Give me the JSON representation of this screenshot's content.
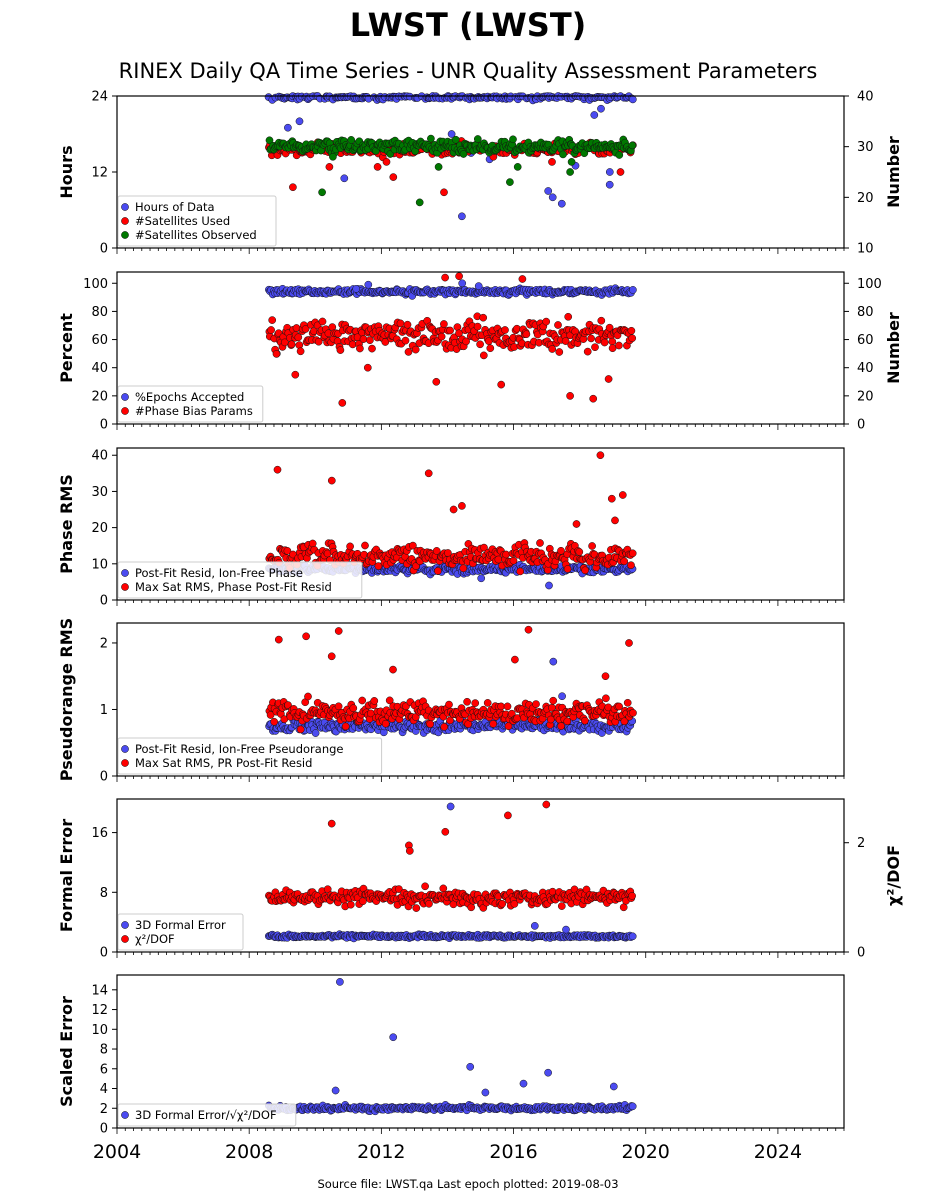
{
  "title": "LWST (LWST)",
  "subtitle": "RINEX Daily QA Time Series - UNR Quality Assessment Parameters",
  "footer": "Source file: LWST.qa Last epoch plotted: 2019-08-03",
  "colors": {
    "blue": "#4b4bf0",
    "red": "#ff0000",
    "green": "#007800",
    "edge": "#111111"
  },
  "chart_data": [
    {
      "type": "scatter",
      "ylabel": "Hours",
      "ylabel_right": "Number",
      "xlim": [
        2004,
        2026
      ],
      "ylim": [
        0,
        24
      ],
      "yticks": [
        "0",
        "12",
        "24"
      ],
      "ylim_right": [
        10,
        40
      ],
      "yticks_right": [
        "10",
        "20",
        "30",
        "40"
      ],
      "legend_placement": "lower-left",
      "series": [
        {
          "name": "Hours of Data",
          "color": "blue",
          "axis": "left",
          "center": 23.9,
          "spread": 0.5,
          "outliers": [
            18,
            22,
            20,
            16,
            14,
            12,
            10,
            8,
            5,
            11,
            13,
            15,
            19,
            21,
            9,
            7
          ]
        },
        {
          "name": "#Satellites Used",
          "color": "red",
          "axis": "right",
          "center": 29.5,
          "spread": 1.2,
          "outliers": [
            26,
            28,
            21,
            25,
            24,
            27,
            22,
            26,
            27
          ]
        },
        {
          "name": "#Satellites Observed",
          "color": "green",
          "axis": "right",
          "center": 30,
          "spread": 1.2,
          "outliers": [
            21,
            19,
            23,
            25,
            26,
            27,
            28,
            26
          ]
        }
      ]
    },
    {
      "type": "scatter",
      "ylabel": "Percent",
      "ylabel_right": "Number",
      "xlim": [
        2004,
        2026
      ],
      "ylim": [
        0,
        108
      ],
      "yticks": [
        "0",
        "20",
        "40",
        "60",
        "80",
        "100"
      ],
      "ylim_right": [
        0,
        108
      ],
      "yticks_right": [
        "0",
        "20",
        "40",
        "60",
        "80",
        "100"
      ],
      "legend_placement": "lower-left",
      "series": [
        {
          "name": "%Epochs Accepted",
          "color": "blue",
          "axis": "left",
          "center": 94,
          "spread": 2,
          "outliers": [
            100,
            98,
            96,
            99,
            50
          ]
        },
        {
          "name": "#Phase Bias Params",
          "color": "red",
          "axis": "right",
          "center": 63,
          "spread": 10,
          "outliers": [
            15,
            18,
            20,
            30,
            35,
            40,
            105,
            104,
            103,
            28,
            32
          ]
        }
      ]
    },
    {
      "type": "scatter",
      "ylabel": "Phase RMS",
      "xlim": [
        2004,
        2026
      ],
      "ylim": [
        0,
        42
      ],
      "yticks": [
        "0",
        "10",
        "20",
        "30",
        "40"
      ],
      "legend_placement": "lower-left",
      "series": [
        {
          "name": "Post-Fit Resid, Ion-Free Phase",
          "color": "blue",
          "axis": "left",
          "center": 8.5,
          "spread": 1,
          "outliers": [
            4,
            6
          ]
        },
        {
          "name": "Max Sat RMS, Phase Post-Fit Resid",
          "color": "red",
          "axis": "left",
          "center": 12,
          "spread": 3,
          "outliers": [
            40,
            35,
            36,
            33,
            29,
            28,
            26,
            25,
            22,
            21
          ]
        }
      ]
    },
    {
      "type": "scatter",
      "ylabel": "Pseudorange RMS",
      "xlim": [
        2004,
        2026
      ],
      "ylim": [
        0,
        2.3
      ],
      "yticks": [
        "0",
        "1",
        "2"
      ],
      "legend_placement": "lower-left",
      "series": [
        {
          "name": "Post-Fit Resid, Ion-Free Pseudorange",
          "color": "blue",
          "axis": "left",
          "center": 0.75,
          "spread": 0.08,
          "outliers": [
            1.72,
            1.2
          ]
        },
        {
          "name": "Max Sat RMS, PR Post-Fit Resid",
          "color": "red",
          "axis": "left",
          "center": 0.95,
          "spread": 0.18,
          "outliers": [
            2.2,
            2.18,
            2.1,
            2.05,
            2.0,
            1.8,
            1.75,
            1.6,
            1.5
          ]
        }
      ]
    },
    {
      "type": "scatter",
      "ylabel": "Formal Error",
      "ylabel_right": "χ²/DOF",
      "xlim": [
        2004,
        2026
      ],
      "ylim": [
        0,
        20.5
      ],
      "yticks": [
        "0",
        "8",
        "16"
      ],
      "ylim_right": [
        0,
        2.8
      ],
      "yticks_right": [
        "0",
        "2"
      ],
      "legend_placement": "lower-left",
      "series": [
        {
          "name": "3D Formal Error",
          "color": "blue",
          "axis": "left",
          "center": 2.1,
          "spread": 0.2,
          "outliers": [
            19.5,
            3,
            3.5
          ]
        },
        {
          "name": "χ²/DOF",
          "color": "red",
          "axis": "right",
          "center": 1.0,
          "spread": 0.15,
          "outliers": [
            2.7,
            2.5,
            2.35,
            2.2,
            1.95,
            1.85
          ]
        }
      ]
    },
    {
      "type": "scatter",
      "ylabel": "Scaled Error",
      "xlim": [
        2004,
        2026
      ],
      "ylim": [
        0,
        15.5
      ],
      "yticks": [
        "0",
        "2",
        "4",
        "6",
        "8",
        "10",
        "12",
        "14"
      ],
      "xticks": [
        "2004",
        "2008",
        "2012",
        "2016",
        "2020",
        "2024"
      ],
      "legend_placement": "lower-left",
      "series": [
        {
          "name": "3D Formal Error/√χ²/DOF",
          "color": "blue",
          "axis": "left",
          "center": 2.0,
          "spread": 0.25,
          "outliers": [
            14.8,
            9.2,
            6.2,
            5.6,
            4.5,
            4.2,
            3.8,
            3.6
          ]
        }
      ]
    }
  ]
}
